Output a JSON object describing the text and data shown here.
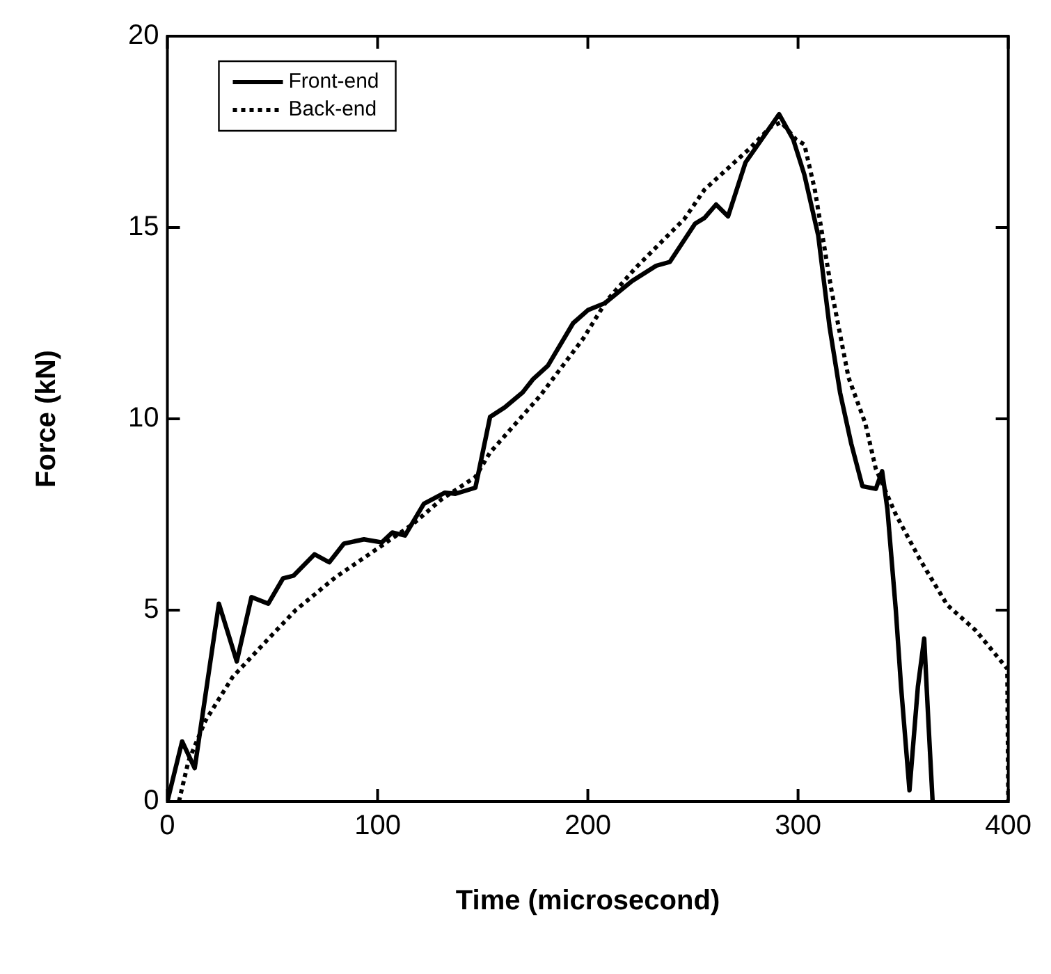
{
  "chart_data": {
    "type": "line",
    "xlabel": "Time (microsecond)",
    "ylabel": "Force (kN)",
    "xlim": [
      0,
      400
    ],
    "xticks": [
      0,
      100,
      200,
      300,
      400
    ],
    "ylim": [
      0,
      20
    ],
    "yticks": [
      0,
      5,
      10,
      15,
      20
    ],
    "grid": false,
    "legend": "top left",
    "marker": "none",
    "series": [
      {
        "name": "Front-end",
        "color": "#000000",
        "line_style": "solid",
        "x": [
          0,
          7,
          13,
          24.5,
          33,
          40,
          48,
          55,
          60,
          70,
          77,
          84,
          93.5,
          102,
          107,
          113,
          122,
          132,
          137,
          146.5,
          153.5,
          160.5,
          169,
          174,
          181,
          193,
          200,
          208,
          221,
          232.5,
          239,
          251,
          255.5,
          261,
          266.7,
          275,
          291,
          297.7,
          303,
          309.6,
          315,
          320,
          325.3,
          330.6,
          337,
          340,
          342.5,
          346.5,
          349,
          353,
          357,
          360,
          362,
          364
        ],
        "values": [
          0,
          1.57,
          0.87,
          5.17,
          3.66,
          5.34,
          5.17,
          5.83,
          5.9,
          6.46,
          6.25,
          6.74,
          6.85,
          6.77,
          7.03,
          6.95,
          7.78,
          8.07,
          8.04,
          8.2,
          10.05,
          10.3,
          10.69,
          11.04,
          11.39,
          12.5,
          12.84,
          13.02,
          13.6,
          14.0,
          14.1,
          15.1,
          15.25,
          15.6,
          15.29,
          16.7,
          17.96,
          17.3,
          16.38,
          14.79,
          12.4,
          10.68,
          9.35,
          8.24,
          8.17,
          8.63,
          7.64,
          5.0,
          3.0,
          0.29,
          3.0,
          4.26,
          2.08,
          0
        ]
      },
      {
        "name": "Back-end",
        "color": "#000000",
        "line_style": "dotted",
        "x": [
          5.5,
          10,
          18,
          31,
          47,
          61,
          80,
          100.5,
          117,
          130.5,
          146.5,
          153.5,
          177,
          197.7,
          209,
          223,
          246,
          255.5,
          276.5,
          287,
          292,
          299,
          303,
          308,
          316,
          324,
          332,
          337,
          346.5,
          358,
          371,
          384.5,
          399.5,
          400
        ],
        "values": [
          0,
          1.05,
          2.1,
          3.25,
          4.19,
          5.0,
          5.86,
          6.63,
          7.26,
          7.9,
          8.48,
          9.12,
          10.58,
          12.09,
          13.09,
          13.96,
          15.23,
          15.99,
          17.04,
          17.63,
          17.75,
          17.3,
          17.17,
          15.98,
          13.33,
          11.08,
          9.88,
          8.69,
          7.5,
          6.32,
          5.13,
          4.47,
          3.47,
          0
        ]
      }
    ]
  }
}
